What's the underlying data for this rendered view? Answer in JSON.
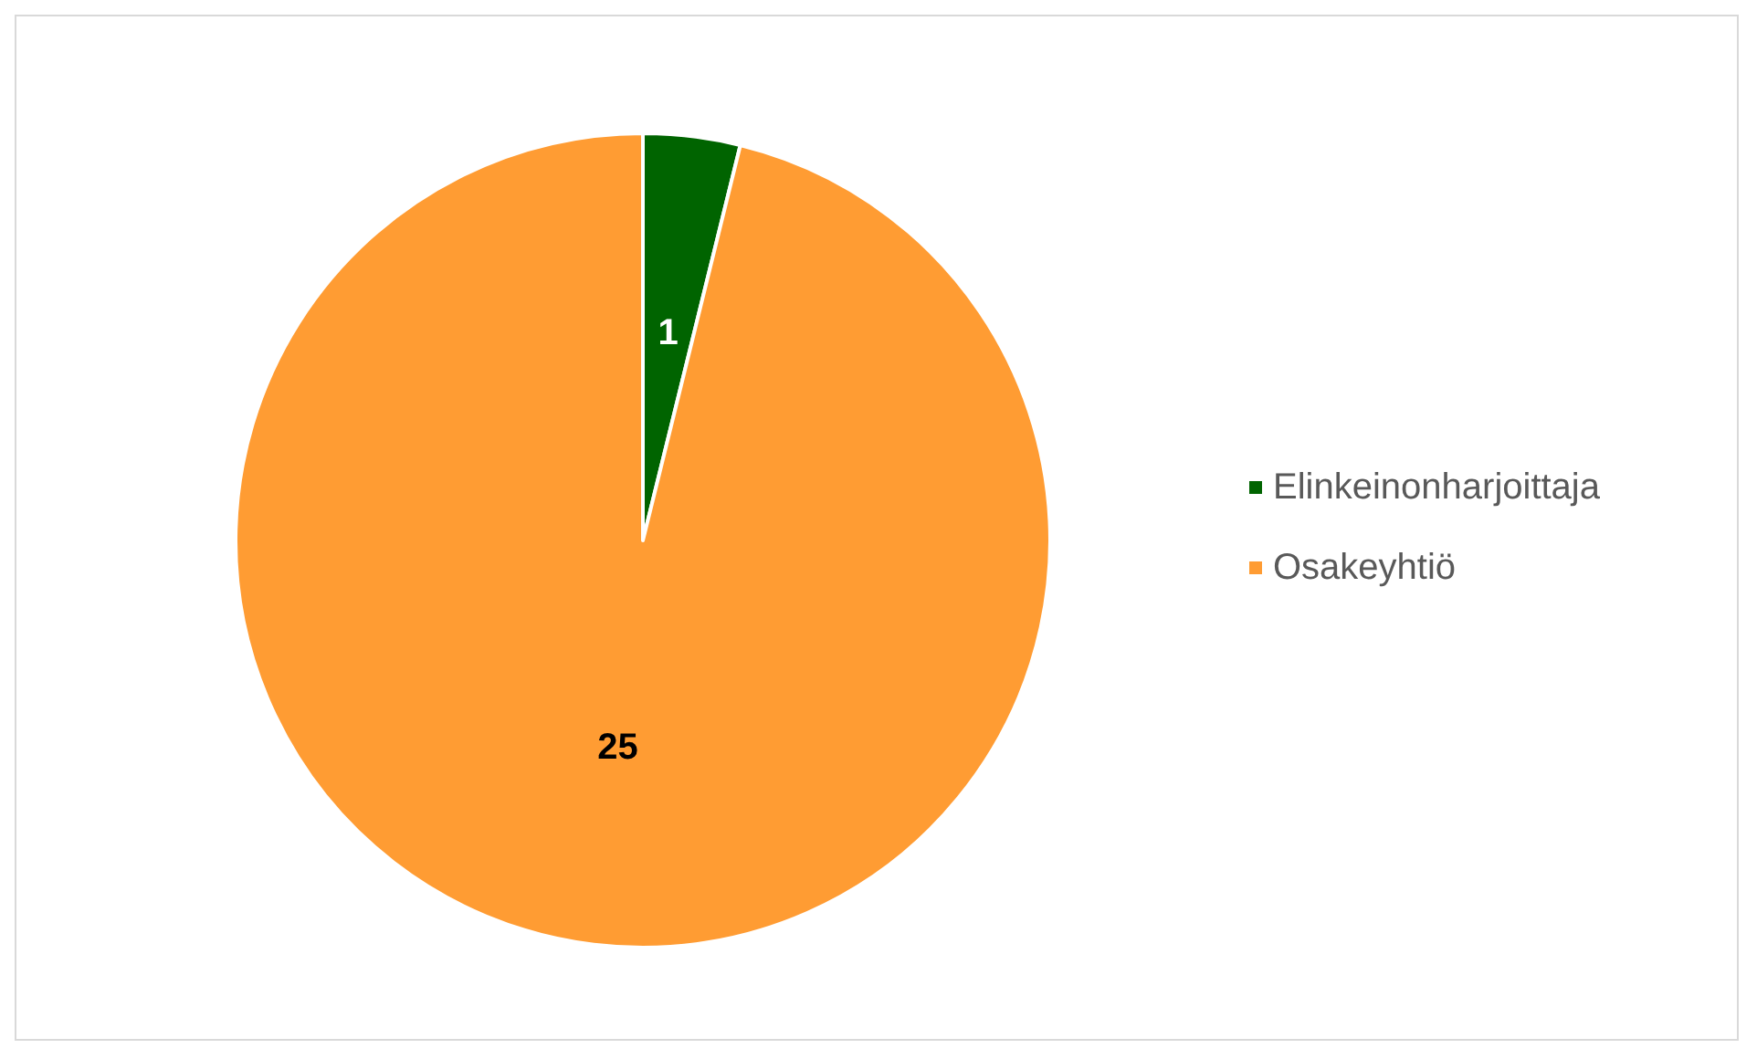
{
  "chart_data": {
    "type": "pie",
    "categories": [
      "Elinkeinonharjoittaja",
      "Osakeyhtiö"
    ],
    "values": [
      1,
      25
    ],
    "colors": [
      "#006400",
      "#ff9c33"
    ],
    "data_labels": true,
    "legend": "right"
  }
}
